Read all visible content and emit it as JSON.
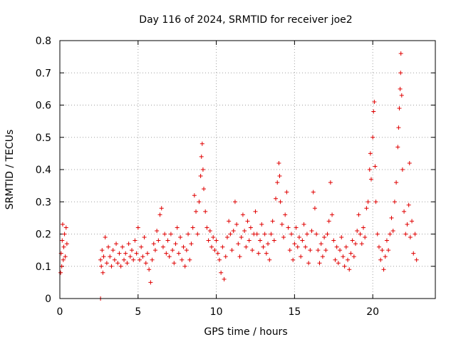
{
  "chart_data": {
    "type": "scatter",
    "title": "Day 116 of 2024, SRMTID for receiver joe2",
    "xlabel": "GPS time / hours",
    "ylabel": "SRMTID / TECUs",
    "xlim": [
      0,
      24
    ],
    "ylim": [
      0,
      0.8
    ],
    "xticks": [
      0,
      5,
      10,
      15,
      20
    ],
    "yticks": [
      0,
      0.1,
      0.2,
      0.3,
      0.4,
      0.5,
      0.6,
      0.7,
      0.8
    ],
    "grid": true,
    "marker": "plus",
    "series_color": "#e00000",
    "series": [
      {
        "name": "SRMTID",
        "points": [
          [
            0.05,
            0.08
          ],
          [
            0.08,
            0.14
          ],
          [
            0.12,
            0.1
          ],
          [
            0.15,
            0.18
          ],
          [
            0.18,
            0.23
          ],
          [
            0.22,
            0.12
          ],
          [
            0.25,
            0.16
          ],
          [
            0.3,
            0.2
          ],
          [
            0.35,
            0.13
          ],
          [
            0.4,
            0.22
          ],
          [
            0.45,
            0.17
          ],
          [
            2.6,
            0.0
          ],
          [
            2.6,
            0.12
          ],
          [
            2.65,
            0.1
          ],
          [
            2.7,
            0.15
          ],
          [
            2.75,
            0.08
          ],
          [
            2.8,
            0.13
          ],
          [
            2.9,
            0.19
          ],
          [
            3.0,
            0.11
          ],
          [
            3.1,
            0.16
          ],
          [
            3.2,
            0.13
          ],
          [
            3.3,
            0.1
          ],
          [
            3.4,
            0.15
          ],
          [
            3.5,
            0.12
          ],
          [
            3.6,
            0.17
          ],
          [
            3.7,
            0.11
          ],
          [
            3.8,
            0.14
          ],
          [
            3.9,
            0.1
          ],
          [
            4.0,
            0.16
          ],
          [
            4.1,
            0.12
          ],
          [
            4.2,
            0.14
          ],
          [
            4.3,
            0.11
          ],
          [
            4.4,
            0.17
          ],
          [
            4.5,
            0.13
          ],
          [
            4.6,
            0.15
          ],
          [
            4.7,
            0.12
          ],
          [
            4.8,
            0.18
          ],
          [
            4.9,
            0.14
          ],
          [
            5.0,
            0.22
          ],
          [
            5.1,
            0.12
          ],
          [
            5.2,
            0.16
          ],
          [
            5.3,
            0.13
          ],
          [
            5.4,
            0.19
          ],
          [
            5.5,
            0.11
          ],
          [
            5.6,
            0.14
          ],
          [
            5.7,
            0.09
          ],
          [
            5.8,
            0.05
          ],
          [
            5.9,
            0.12
          ],
          [
            6.0,
            0.17
          ],
          [
            6.1,
            0.15
          ],
          [
            6.2,
            0.21
          ],
          [
            6.3,
            0.18
          ],
          [
            6.4,
            0.26
          ],
          [
            6.5,
            0.28
          ],
          [
            6.6,
            0.16
          ],
          [
            6.7,
            0.2
          ],
          [
            6.8,
            0.14
          ],
          [
            6.9,
            0.18
          ],
          [
            7.0,
            0.13
          ],
          [
            7.1,
            0.2
          ],
          [
            7.2,
            0.15
          ],
          [
            7.3,
            0.11
          ],
          [
            7.4,
            0.17
          ],
          [
            7.5,
            0.22
          ],
          [
            7.6,
            0.14
          ],
          [
            7.7,
            0.19
          ],
          [
            7.8,
            0.12
          ],
          [
            7.9,
            0.16
          ],
          [
            8.0,
            0.1
          ],
          [
            8.1,
            0.15
          ],
          [
            8.2,
            0.2
          ],
          [
            8.3,
            0.12
          ],
          [
            8.4,
            0.17
          ],
          [
            8.5,
            0.22
          ],
          [
            8.6,
            0.32
          ],
          [
            8.7,
            0.27
          ],
          [
            8.8,
            0.2
          ],
          [
            8.9,
            0.3
          ],
          [
            9.0,
            0.38
          ],
          [
            9.05,
            0.44
          ],
          [
            9.1,
            0.48
          ],
          [
            9.15,
            0.4
          ],
          [
            9.2,
            0.34
          ],
          [
            9.3,
            0.27
          ],
          [
            9.4,
            0.22
          ],
          [
            9.5,
            0.18
          ],
          [
            9.6,
            0.21
          ],
          [
            9.7,
            0.16
          ],
          [
            9.8,
            0.19
          ],
          [
            9.9,
            0.15
          ],
          [
            10.0,
            0.18
          ],
          [
            10.1,
            0.14
          ],
          [
            10.2,
            0.12
          ],
          [
            10.3,
            0.08
          ],
          [
            10.4,
            0.16
          ],
          [
            10.5,
            0.06
          ],
          [
            10.6,
            0.13
          ],
          [
            10.7,
            0.19
          ],
          [
            10.8,
            0.24
          ],
          [
            10.9,
            0.2
          ],
          [
            11.0,
            0.15
          ],
          [
            11.1,
            0.21
          ],
          [
            11.2,
            0.3
          ],
          [
            11.3,
            0.23
          ],
          [
            11.4,
            0.17
          ],
          [
            11.5,
            0.13
          ],
          [
            11.6,
            0.19
          ],
          [
            11.7,
            0.26
          ],
          [
            11.8,
            0.21
          ],
          [
            11.9,
            0.16
          ],
          [
            12.0,
            0.24
          ],
          [
            12.1,
            0.18
          ],
          [
            12.2,
            0.22
          ],
          [
            12.3,
            0.15
          ],
          [
            12.4,
            0.2
          ],
          [
            12.5,
            0.27
          ],
          [
            12.6,
            0.2
          ],
          [
            12.7,
            0.14
          ],
          [
            12.8,
            0.18
          ],
          [
            12.9,
            0.23
          ],
          [
            13.0,
            0.16
          ],
          [
            13.1,
            0.2
          ],
          [
            13.2,
            0.14
          ],
          [
            13.3,
            0.17
          ],
          [
            13.4,
            0.12
          ],
          [
            13.5,
            0.2
          ],
          [
            13.6,
            0.24
          ],
          [
            13.7,
            0.18
          ],
          [
            13.8,
            0.31
          ],
          [
            13.9,
            0.36
          ],
          [
            14.0,
            0.42
          ],
          [
            14.05,
            0.38
          ],
          [
            14.1,
            0.3
          ],
          [
            14.2,
            0.23
          ],
          [
            14.3,
            0.19
          ],
          [
            14.4,
            0.26
          ],
          [
            14.5,
            0.33
          ],
          [
            14.6,
            0.22
          ],
          [
            14.7,
            0.15
          ],
          [
            14.8,
            0.2
          ],
          [
            14.9,
            0.12
          ],
          [
            15.0,
            0.17
          ],
          [
            15.1,
            0.22
          ],
          [
            15.2,
            0.16
          ],
          [
            15.3,
            0.19
          ],
          [
            15.4,
            0.13
          ],
          [
            15.5,
            0.18
          ],
          [
            15.6,
            0.23
          ],
          [
            15.7,
            0.16
          ],
          [
            15.8,
            0.2
          ],
          [
            15.9,
            0.11
          ],
          [
            16.0,
            0.15
          ],
          [
            16.1,
            0.21
          ],
          [
            16.2,
            0.33
          ],
          [
            16.3,
            0.28
          ],
          [
            16.4,
            0.2
          ],
          [
            16.5,
            0.15
          ],
          [
            16.6,
            0.11
          ],
          [
            16.7,
            0.17
          ],
          [
            16.8,
            0.13
          ],
          [
            16.9,
            0.19
          ],
          [
            17.0,
            0.15
          ],
          [
            17.1,
            0.2
          ],
          [
            17.2,
            0.24
          ],
          [
            17.3,
            0.36
          ],
          [
            17.4,
            0.26
          ],
          [
            17.5,
            0.18
          ],
          [
            17.6,
            0.12
          ],
          [
            17.7,
            0.16
          ],
          [
            17.8,
            0.11
          ],
          [
            17.9,
            0.15
          ],
          [
            18.0,
            0.19
          ],
          [
            18.1,
            0.13
          ],
          [
            18.2,
            0.1
          ],
          [
            18.3,
            0.16
          ],
          [
            18.4,
            0.12
          ],
          [
            18.5,
            0.09
          ],
          [
            18.6,
            0.14
          ],
          [
            18.7,
            0.18
          ],
          [
            18.8,
            0.13
          ],
          [
            18.9,
            0.17
          ],
          [
            19.0,
            0.21
          ],
          [
            19.1,
            0.26
          ],
          [
            19.2,
            0.2
          ],
          [
            19.3,
            0.17
          ],
          [
            19.4,
            0.22
          ],
          [
            19.5,
            0.19
          ],
          [
            19.6,
            0.28
          ],
          [
            19.7,
            0.3
          ],
          [
            19.8,
            0.4
          ],
          [
            19.85,
            0.45
          ],
          [
            19.9,
            0.37
          ],
          [
            20.0,
            0.5
          ],
          [
            20.05,
            0.58
          ],
          [
            20.1,
            0.61
          ],
          [
            20.15,
            0.41
          ],
          [
            20.2,
            0.3
          ],
          [
            20.3,
            0.2
          ],
          [
            20.4,
            0.16
          ],
          [
            20.5,
            0.12
          ],
          [
            20.6,
            0.15
          ],
          [
            20.7,
            0.09
          ],
          [
            20.8,
            0.13
          ],
          [
            20.9,
            0.18
          ],
          [
            21.0,
            0.15
          ],
          [
            21.1,
            0.2
          ],
          [
            21.2,
            0.25
          ],
          [
            21.3,
            0.21
          ],
          [
            21.4,
            0.3
          ],
          [
            21.5,
            0.36
          ],
          [
            21.6,
            0.47
          ],
          [
            21.65,
            0.53
          ],
          [
            21.7,
            0.59
          ],
          [
            21.75,
            0.65
          ],
          [
            21.78,
            0.7
          ],
          [
            21.8,
            0.76
          ],
          [
            21.85,
            0.63
          ],
          [
            21.9,
            0.4
          ],
          [
            22.0,
            0.27
          ],
          [
            22.1,
            0.2
          ],
          [
            22.2,
            0.23
          ],
          [
            22.3,
            0.29
          ],
          [
            22.35,
            0.42
          ],
          [
            22.4,
            0.19
          ],
          [
            22.5,
            0.24
          ],
          [
            22.6,
            0.14
          ],
          [
            22.7,
            0.2
          ],
          [
            22.8,
            0.12
          ]
        ]
      }
    ]
  }
}
